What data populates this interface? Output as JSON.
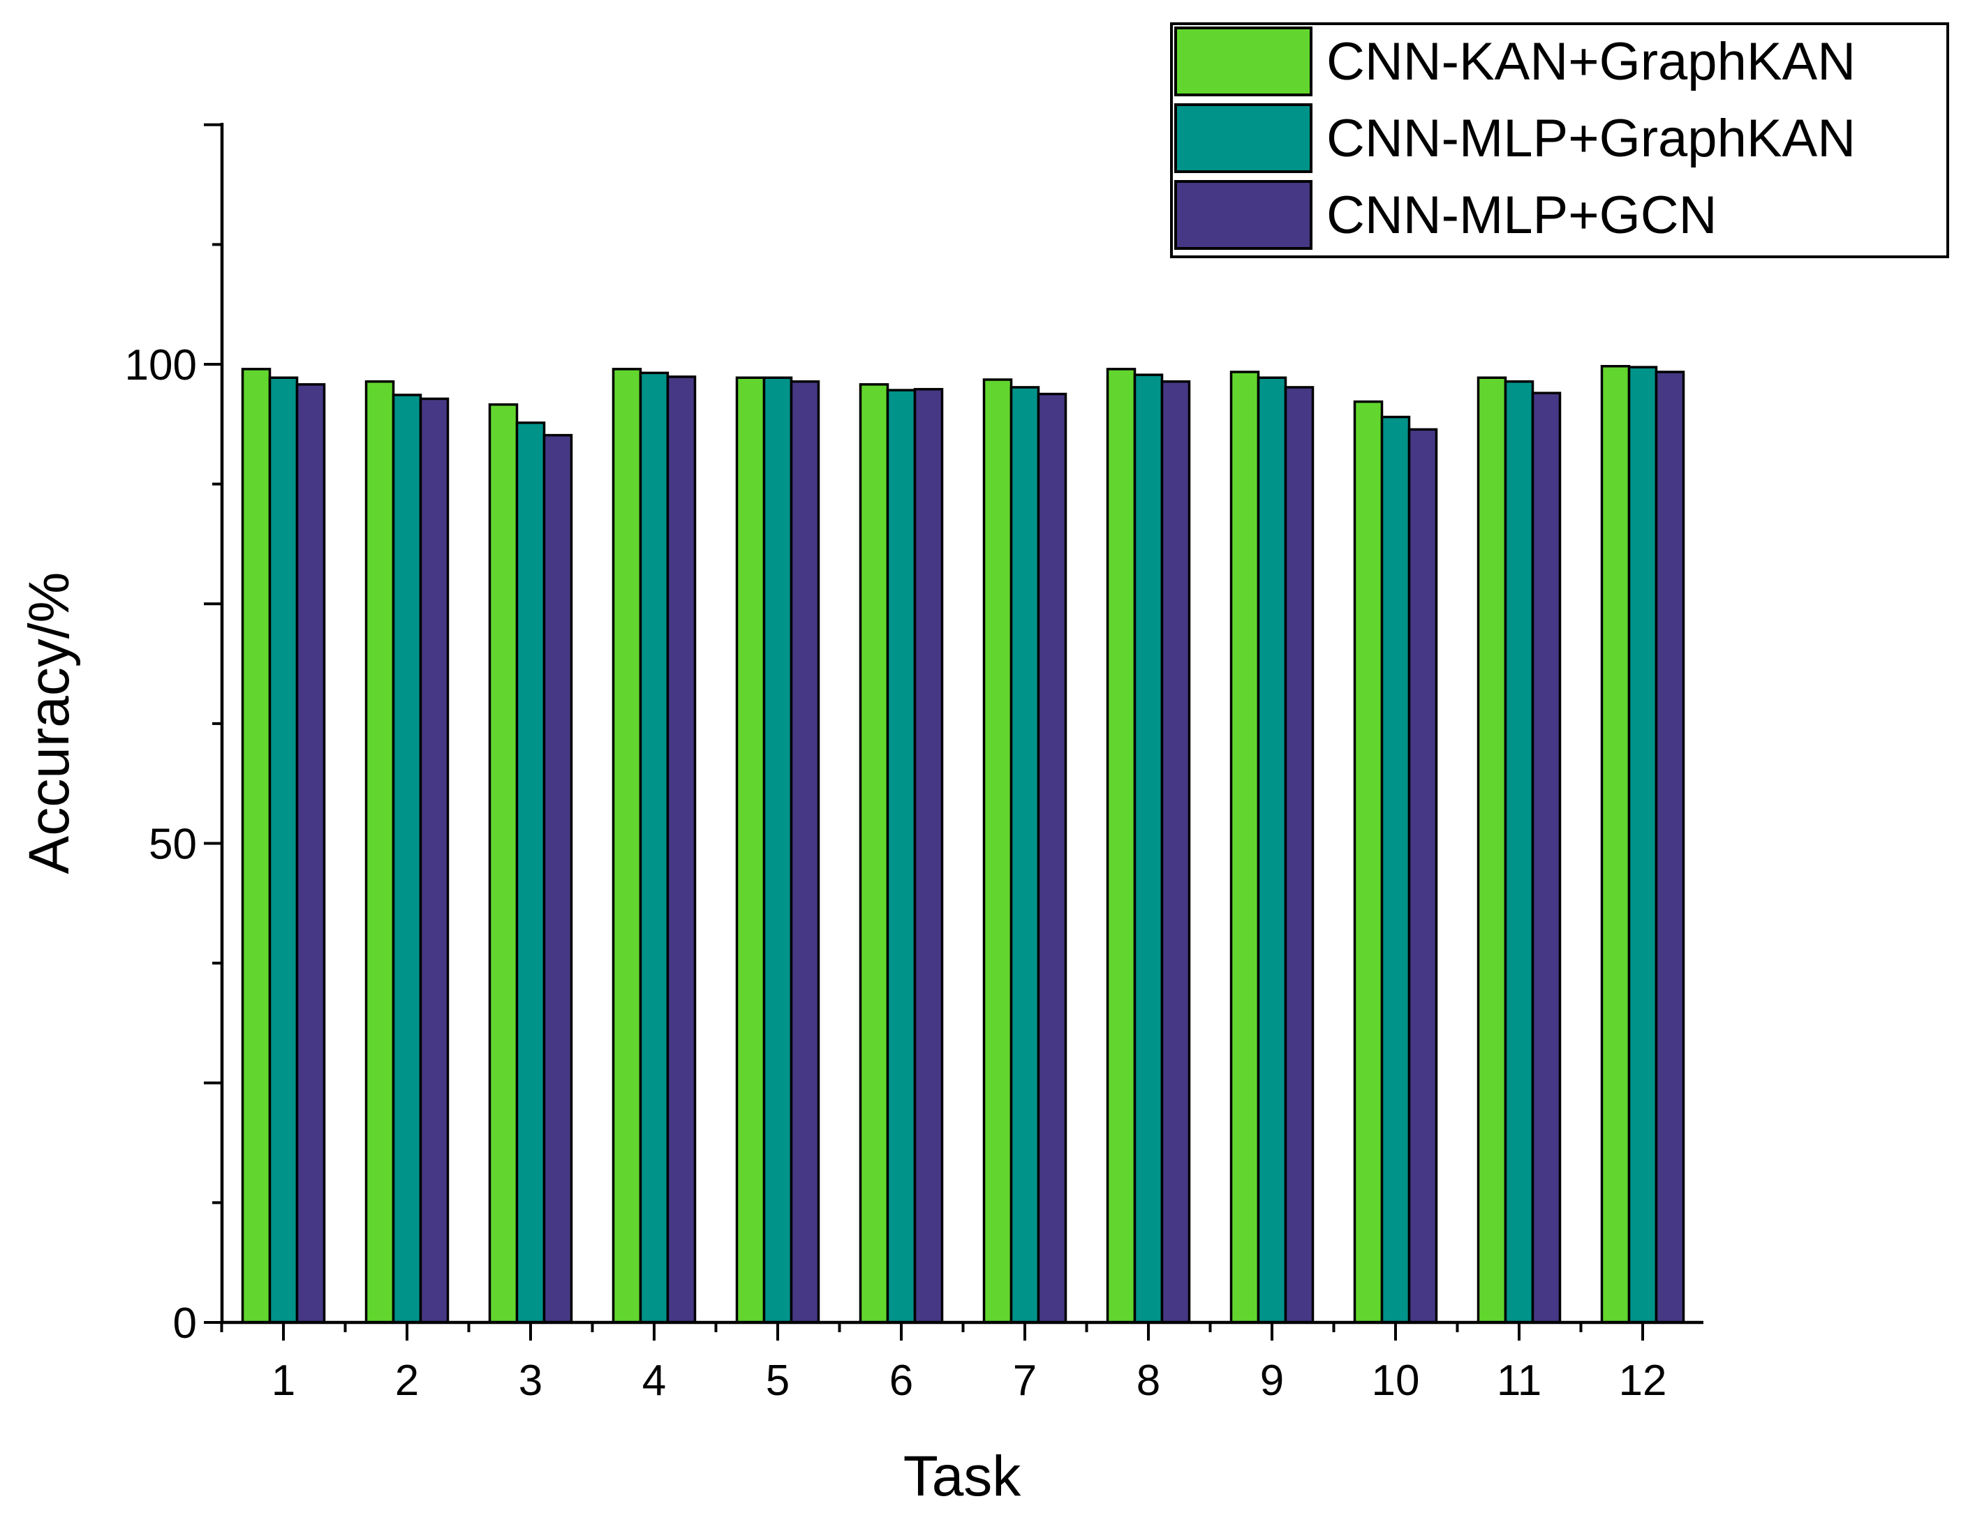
{
  "chart_data": {
    "type": "bar",
    "title": "",
    "xlabel": "Task",
    "ylabel": "Accuracy/%",
    "categories": [
      "1",
      "2",
      "3",
      "4",
      "5",
      "6",
      "7",
      "8",
      "9",
      "10",
      "11",
      "12"
    ],
    "series": [
      {
        "name": "CNN-KAN+GraphKAN",
        "color": "#62d62e",
        "values": [
          99.5,
          98.2,
          95.8,
          99.5,
          98.6,
          97.9,
          98.4,
          99.5,
          99.2,
          96.1,
          98.6,
          99.8
        ]
      },
      {
        "name": "CNN-MLP+GraphKAN",
        "color": "#00938a",
        "values": [
          98.6,
          96.8,
          93.9,
          99.1,
          98.6,
          97.3,
          97.6,
          98.9,
          98.6,
          94.5,
          98.2,
          99.7
        ]
      },
      {
        "name": "CNN-MLP+GCN",
        "color": "#463884",
        "values": [
          97.9,
          96.4,
          92.6,
          98.7,
          98.2,
          97.4,
          96.9,
          98.2,
          97.6,
          93.2,
          97.0,
          99.2
        ]
      }
    ],
    "ylim": [
      0,
      125
    ],
    "yticks": [
      0,
      50,
      100
    ],
    "grid": false,
    "legend_position": "top-right"
  }
}
